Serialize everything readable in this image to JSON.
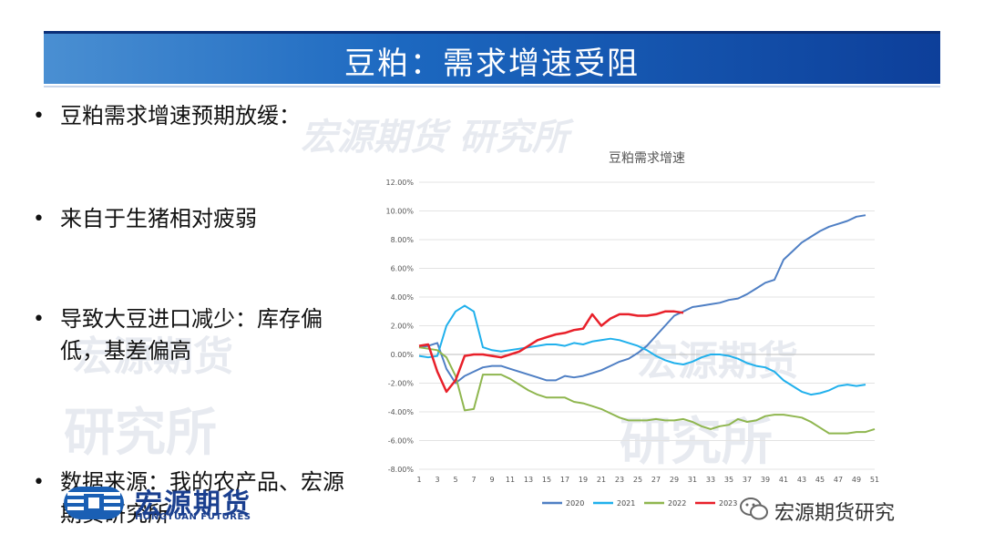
{
  "slide": {
    "title": "豆粕：需求增速受阻",
    "bullets": [
      "豆粕需求增速预期放缓：",
      "来自于生猪相对疲弱",
      "导致大豆进口减少：库存偏低，基差偏高",
      "数据来源：我的农产品、宏源期货研究所"
    ],
    "watermark": "宏源期货研究所",
    "watermark_a": "宏源期货",
    "watermark_b": "研究所",
    "watermark_c": "宏源期货 研究所"
  },
  "logo": {
    "cn": "宏源期货",
    "en": "HONGYUAN FUTURES"
  },
  "wechat": {
    "label": "宏源期货研究"
  },
  "colors": {
    "s2020": "#4f7fc4",
    "s2021": "#20b0ec",
    "s2022": "#8fb64f",
    "s2023": "#e8202a"
  },
  "chart_data": {
    "type": "line",
    "title": "豆粕需求增速",
    "xlabel": "",
    "ylabel": "",
    "ylim": [
      -0.08,
      0.12
    ],
    "y_ticks": [
      "12.00%",
      "10.00%",
      "8.00%",
      "6.00%",
      "4.00%",
      "2.00%",
      "0.00%",
      "-2.00%",
      "-4.00%",
      "-6.00%",
      "-8.00%"
    ],
    "x_ticks": [
      "1",
      "3",
      "5",
      "7",
      "9",
      "11",
      "13",
      "15",
      "17",
      "19",
      "21",
      "23",
      "25",
      "27",
      "29",
      "31",
      "33",
      "35",
      "37",
      "39",
      "41",
      "43",
      "45",
      "47",
      "49",
      "51"
    ],
    "grid": true,
    "legend_position": "bottom",
    "series": [
      {
        "name": "2020",
        "color": "#4f7fc4",
        "x": [
          1,
          2,
          3,
          4,
          5,
          6,
          7,
          8,
          9,
          10,
          11,
          12,
          13,
          14,
          15,
          16,
          17,
          18,
          19,
          20,
          21,
          22,
          23,
          24,
          25,
          26,
          27,
          28,
          29,
          30,
          31,
          32,
          33,
          34,
          35,
          36,
          37,
          38,
          39,
          40,
          41,
          42,
          43,
          44,
          45,
          46,
          47,
          48,
          49,
          50
        ],
        "values": [
          0.005,
          0.006,
          0.008,
          -0.01,
          -0.02,
          -0.015,
          -0.012,
          -0.009,
          -0.008,
          -0.008,
          -0.01,
          -0.012,
          -0.014,
          -0.016,
          -0.018,
          -0.018,
          -0.015,
          -0.016,
          -0.015,
          -0.013,
          -0.011,
          -0.008,
          -0.005,
          -0.003,
          0.001,
          0.006,
          0.013,
          0.02,
          0.027,
          0.03,
          0.033,
          0.034,
          0.035,
          0.036,
          0.038,
          0.039,
          0.042,
          0.046,
          0.05,
          0.052,
          0.066,
          0.072,
          0.078,
          0.082,
          0.086,
          0.089,
          0.091,
          0.093,
          0.096,
          0.097
        ]
      },
      {
        "name": "2021",
        "color": "#20b0ec",
        "x": [
          1,
          2,
          3,
          4,
          5,
          6,
          7,
          8,
          9,
          10,
          11,
          12,
          13,
          14,
          15,
          16,
          17,
          18,
          19,
          20,
          21,
          22,
          23,
          24,
          25,
          26,
          27,
          28,
          29,
          30,
          31,
          32,
          33,
          34,
          35,
          36,
          37,
          38,
          39,
          40,
          41,
          42,
          43,
          44,
          45,
          46,
          47,
          48,
          49,
          50
        ],
        "values": [
          -0.001,
          -0.002,
          -0.001,
          0.02,
          0.03,
          0.034,
          0.03,
          0.005,
          0.003,
          0.002,
          0.003,
          0.004,
          0.005,
          0.006,
          0.007,
          0.007,
          0.006,
          0.008,
          0.007,
          0.009,
          0.01,
          0.011,
          0.01,
          0.008,
          0.006,
          0.003,
          -0.001,
          -0.004,
          -0.006,
          -0.007,
          -0.005,
          -0.002,
          0.0,
          0.0,
          -0.001,
          -0.003,
          -0.006,
          -0.008,
          -0.009,
          -0.012,
          -0.018,
          -0.022,
          -0.026,
          -0.028,
          -0.027,
          -0.025,
          -0.022,
          -0.021,
          -0.022,
          -0.021
        ]
      },
      {
        "name": "2022",
        "color": "#8fb64f",
        "x": [
          1,
          2,
          3,
          4,
          5,
          6,
          7,
          8,
          9,
          10,
          11,
          12,
          13,
          14,
          15,
          16,
          17,
          18,
          19,
          20,
          21,
          22,
          23,
          24,
          25,
          26,
          27,
          28,
          29,
          30,
          31,
          32,
          33,
          34,
          35,
          36,
          37,
          38,
          39,
          40,
          41,
          42,
          43,
          44,
          45,
          46,
          47,
          48,
          49,
          50,
          51
        ],
        "values": [
          0.005,
          0.004,
          0.003,
          -0.002,
          -0.015,
          -0.039,
          -0.038,
          -0.014,
          -0.014,
          -0.014,
          -0.017,
          -0.021,
          -0.025,
          -0.028,
          -0.03,
          -0.03,
          -0.03,
          -0.033,
          -0.034,
          -0.036,
          -0.038,
          -0.041,
          -0.044,
          -0.046,
          -0.046,
          -0.046,
          -0.045,
          -0.046,
          -0.046,
          -0.045,
          -0.047,
          -0.05,
          -0.052,
          -0.05,
          -0.049,
          -0.045,
          -0.047,
          -0.046,
          -0.043,
          -0.042,
          -0.042,
          -0.043,
          -0.044,
          -0.047,
          -0.051,
          -0.055,
          -0.055,
          -0.055,
          -0.054,
          -0.054,
          -0.052
        ]
      },
      {
        "name": "2023",
        "color": "#e8202a",
        "x": [
          1,
          2,
          3,
          4,
          5,
          6,
          7,
          8,
          9,
          10,
          11,
          12,
          13,
          14,
          15,
          16,
          17,
          18,
          19,
          20,
          21,
          22,
          23,
          24,
          25,
          26,
          27,
          28,
          29,
          30
        ],
        "values": [
          0.006,
          0.007,
          -0.012,
          -0.026,
          -0.018,
          -0.001,
          0.0,
          0.0,
          -0.001,
          -0.002,
          0.0,
          0.002,
          0.006,
          0.01,
          0.012,
          0.014,
          0.015,
          0.017,
          0.018,
          0.028,
          0.02,
          0.025,
          0.028,
          0.028,
          0.027,
          0.027,
          0.028,
          0.03,
          0.03,
          0.029
        ]
      }
    ]
  }
}
